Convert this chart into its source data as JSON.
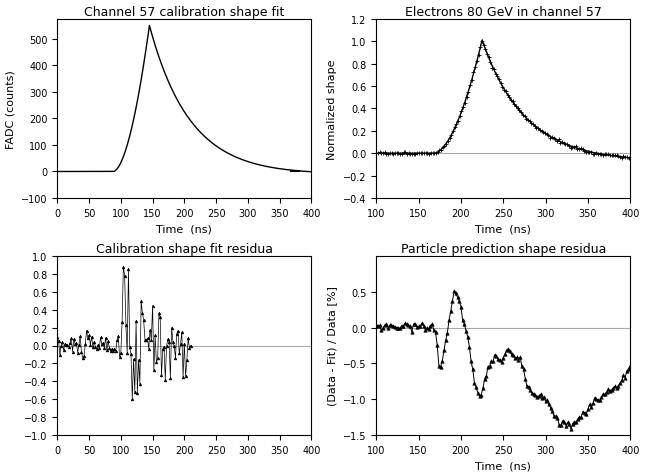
{
  "fig_width": 6.45,
  "fig_height": 4.77,
  "dpi": 100,
  "background_color": "#ffffff",
  "top_left": {
    "title": "Channel 57 calibration shape fit",
    "xlabel": "Time  (ns)",
    "ylabel": "FADC (counts)",
    "xlim": [
      0,
      400
    ],
    "ylim": [
      -100,
      575
    ],
    "yticks": [
      -100,
      0,
      100,
      200,
      300,
      400,
      500
    ],
    "xticks": [
      0,
      50,
      100,
      150,
      200,
      250,
      300,
      350,
      400
    ]
  },
  "top_right": {
    "title": "Electrons 80 GeV in channel 57",
    "xlabel": "Time  (ns)",
    "ylabel": "Normalized shape",
    "xlim": [
      100,
      400
    ],
    "ylim": [
      -0.4,
      1.2
    ],
    "yticks": [
      -0.4,
      -0.2,
      0.0,
      0.2,
      0.4,
      0.6,
      0.8,
      1.0,
      1.2
    ],
    "xticks": [
      100,
      150,
      200,
      250,
      300,
      350,
      400
    ]
  },
  "bot_left": {
    "title": "Calibration shape fit residua",
    "xlabel": "",
    "ylabel": "",
    "xlim": [
      0,
      400
    ],
    "ylim": [
      -1.0,
      1.0
    ],
    "yticks": [
      -1.0,
      -0.8,
      -0.6,
      -0.4,
      -0.2,
      0.0,
      0.2,
      0.4,
      0.6,
      0.8,
      1.0
    ],
    "xticks": [
      0,
      50,
      100,
      150,
      200,
      250,
      300,
      350,
      400
    ]
  },
  "bot_right": {
    "title": "Particle prediction shape residua",
    "xlabel": "Time  (ns)",
    "ylabel": "(Data - Fit) / Data [%]",
    "xlim": [
      100,
      400
    ],
    "ylim": [
      -1.5,
      1.0
    ],
    "yticks": [
      -1.5,
      -1.0,
      -0.5,
      0.0,
      0.5
    ],
    "xticks": [
      100,
      150,
      200,
      250,
      300,
      350,
      400
    ]
  },
  "line_color": "#000000",
  "marker_color": "#000000",
  "ref_line_color": "#aaaaaa",
  "line_width": 1.0,
  "title_fontsize": 9,
  "label_fontsize": 8,
  "tick_fontsize": 7
}
